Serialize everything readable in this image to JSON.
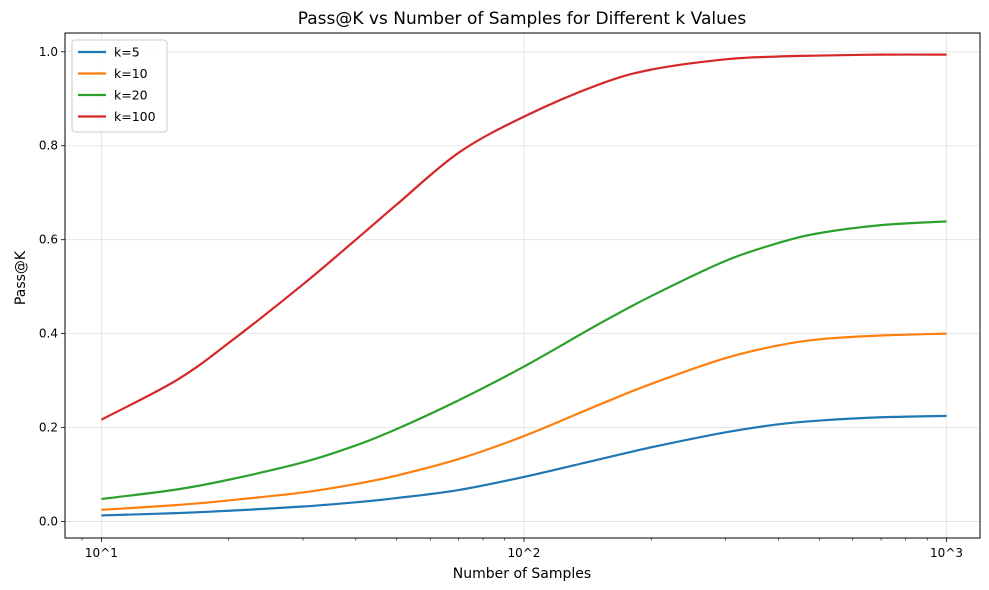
{
  "chart_data": {
    "type": "line",
    "title": "Pass@K vs Number of Samples for Different k Values",
    "xlabel": "Number of Samples",
    "ylabel": "Pass@K",
    "xscale": "log",
    "xlim": [
      8.2,
      1200
    ],
    "ylim": [
      -0.035,
      1.04
    ],
    "xticks": [
      {
        "value": 10,
        "label": "10^1"
      },
      {
        "value": 100,
        "label": "10^2"
      },
      {
        "value": 1000,
        "label": "10^3"
      }
    ],
    "yticks": [
      {
        "value": 0.0,
        "label": "0.0"
      },
      {
        "value": 0.2,
        "label": "0.2"
      },
      {
        "value": 0.4,
        "label": "0.4"
      },
      {
        "value": 0.6,
        "label": "0.6"
      },
      {
        "value": 0.8,
        "label": "0.8"
      },
      {
        "value": 1.0,
        "label": "1.0"
      }
    ],
    "grid": true,
    "legend_position": "top-left",
    "series": [
      {
        "name": "k=5",
        "color": "#1f77b4",
        "x": [
          10,
          15,
          20,
          30,
          40,
          50,
          70,
          100,
          150,
          200,
          300,
          400,
          500,
          700,
          1000
        ],
        "y": [
          0.013,
          0.018,
          0.023,
          0.032,
          0.041,
          0.05,
          0.067,
          0.095,
          0.132,
          0.158,
          0.19,
          0.207,
          0.215,
          0.222,
          0.225
        ]
      },
      {
        "name": "k=10",
        "color": "#ff7f0e",
        "x": [
          10,
          15,
          20,
          30,
          40,
          50,
          70,
          100,
          150,
          200,
          300,
          400,
          500,
          700,
          1000
        ],
        "y": [
          0.025,
          0.035,
          0.045,
          0.062,
          0.08,
          0.098,
          0.133,
          0.182,
          0.248,
          0.293,
          0.348,
          0.375,
          0.388,
          0.396,
          0.4
        ]
      },
      {
        "name": "k=20",
        "color": "#2ca02c",
        "x": [
          10,
          15,
          20,
          30,
          40,
          50,
          70,
          100,
          150,
          200,
          300,
          400,
          500,
          700,
          1000
        ],
        "y": [
          0.048,
          0.068,
          0.089,
          0.126,
          0.162,
          0.197,
          0.258,
          0.33,
          0.42,
          0.48,
          0.555,
          0.593,
          0.614,
          0.631,
          0.639
        ]
      },
      {
        "name": "k=100",
        "color": "#d62728",
        "x": [
          10,
          15,
          20,
          30,
          40,
          50,
          70,
          100,
          150,
          200,
          300,
          400,
          500,
          700,
          1000
        ],
        "y": [
          0.217,
          0.3,
          0.38,
          0.505,
          0.6,
          0.675,
          0.785,
          0.862,
          0.93,
          0.962,
          0.984,
          0.99,
          0.992,
          0.994,
          0.994
        ]
      }
    ]
  }
}
